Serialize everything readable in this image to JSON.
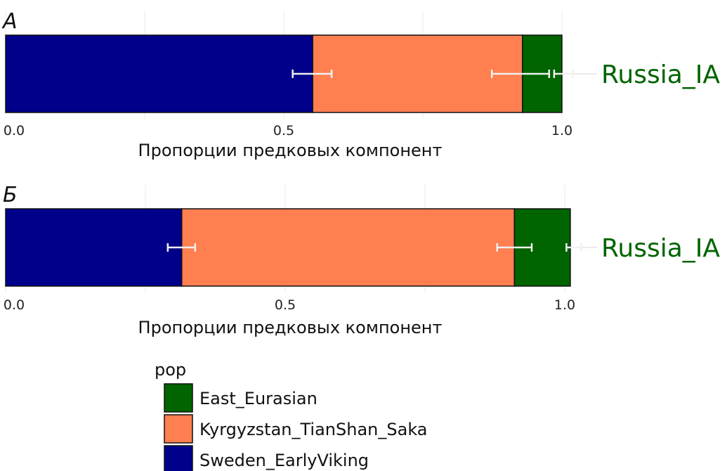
{
  "chart_data": [
    {
      "type": "bar",
      "orientation": "horizontal-stacked",
      "panel_label": "А",
      "category": "Russia_IA",
      "xlabel": "Пропорции предковых компонент",
      "xlim": [
        0,
        1.0
      ],
      "ticks": [
        "0.0",
        "0.5",
        "1.0"
      ],
      "series": [
        {
          "name": "Sweden_EarlyViking",
          "value": 0.552
        },
        {
          "name": "Kyrgyzstan_TianShan_Saka",
          "value": 0.377
        },
        {
          "name": "East_Eurasian",
          "value": 0.071
        }
      ],
      "error_bars": [
        [
          0.516,
          0.586
        ],
        [
          0.874,
          0.977
        ],
        [
          0.986,
          1.02
        ]
      ]
    },
    {
      "type": "bar",
      "orientation": "horizontal-stacked",
      "panel_label": "Б",
      "category": "Russia_IA",
      "xlabel": "Пропорции предковых компонент",
      "xlim": [
        0,
        1.0
      ],
      "ticks": [
        "0.0",
        "0.5",
        "1.0"
      ],
      "series": [
        {
          "name": "Sweden_EarlyViking",
          "value": 0.315
        },
        {
          "name": "Kyrgyzstan_TianShan_Saka",
          "value": 0.595
        },
        {
          "name": "East_Eurasian",
          "value": 0.1
        }
      ],
      "error_bars": [
        [
          0.29,
          0.339
        ],
        [
          0.879,
          0.941
        ],
        [
          1.003,
          1.03
        ]
      ]
    }
  ],
  "legend": {
    "title": "pop",
    "items": [
      {
        "label": "East_Eurasian",
        "color": "#006400"
      },
      {
        "label": "Kyrgyzstan_TianShan_Saka",
        "color": "#FF7F50"
      },
      {
        "label": "Sweden_EarlyViking",
        "color": "#00008B"
      }
    ]
  },
  "colors": {
    "Sweden_EarlyViking": "#00008B",
    "Kyrgyzstan_TianShan_Saka": "#FF7F50",
    "East_Eurasian": "#006400"
  }
}
